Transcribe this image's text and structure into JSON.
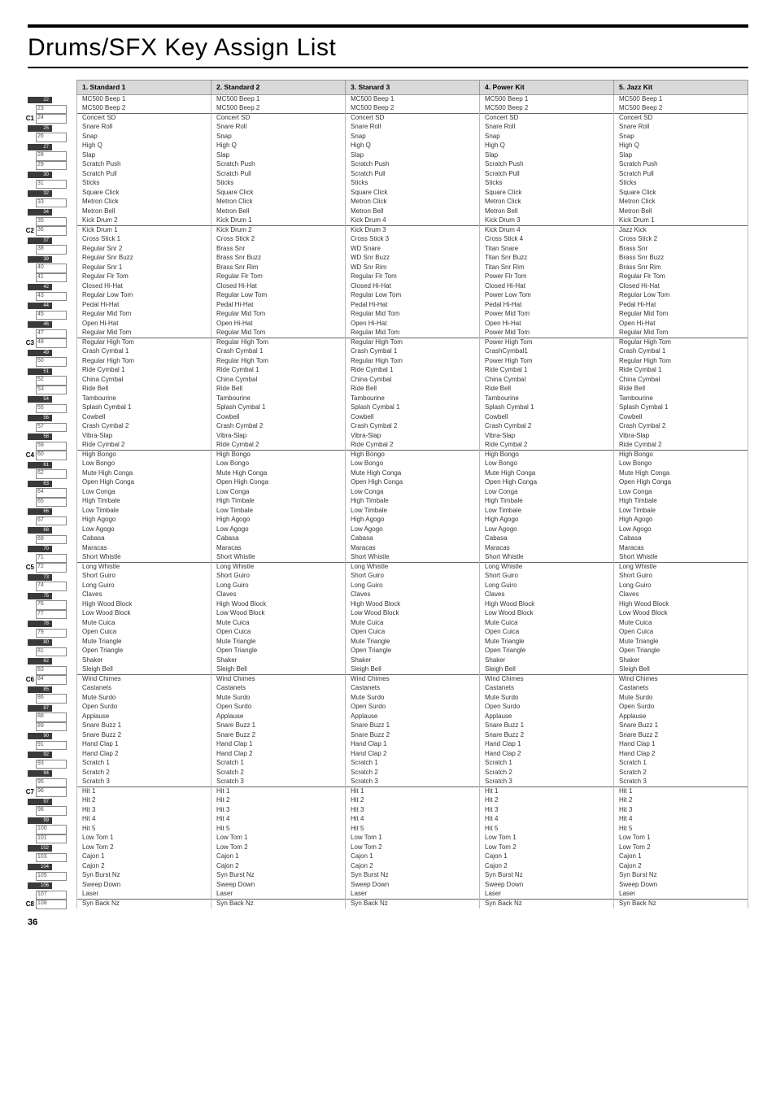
{
  "title": "Drums/SFX Key Assign List",
  "page_number": "36",
  "headers": [
    "1. Standard 1",
    "2. Standard 2",
    "3. Stanard 3",
    "4. Power Kit",
    "5. Jazz Kit"
  ],
  "keys": [
    {
      "type": "black",
      "n": 22,
      "oct": ""
    },
    {
      "type": "white",
      "n": 23,
      "oct": ""
    },
    {
      "type": "white",
      "n": 24,
      "oct": "C1"
    },
    {
      "type": "black",
      "n": 25
    },
    {
      "type": "white",
      "n": 26
    },
    {
      "type": "black",
      "n": 27
    },
    {
      "type": "white",
      "n": 28
    },
    {
      "type": "white",
      "n": 29
    },
    {
      "type": "black",
      "n": 30
    },
    {
      "type": "white",
      "n": 31
    },
    {
      "type": "black",
      "n": 32
    },
    {
      "type": "white",
      "n": 33
    },
    {
      "type": "black",
      "n": 34
    },
    {
      "type": "white",
      "n": 35
    },
    {
      "type": "white",
      "n": 36,
      "oct": "C2"
    },
    {
      "type": "black",
      "n": 37
    },
    {
      "type": "white",
      "n": 38
    },
    {
      "type": "black",
      "n": 39
    },
    {
      "type": "white",
      "n": 40
    },
    {
      "type": "white",
      "n": 41
    },
    {
      "type": "black",
      "n": 42
    },
    {
      "type": "white",
      "n": 43
    },
    {
      "type": "black",
      "n": 44
    },
    {
      "type": "white",
      "n": 45
    },
    {
      "type": "black",
      "n": 46
    },
    {
      "type": "white",
      "n": 47
    },
    {
      "type": "white",
      "n": 48,
      "oct": "C3"
    },
    {
      "type": "black",
      "n": 49
    },
    {
      "type": "white",
      "n": 50
    },
    {
      "type": "black",
      "n": 51
    },
    {
      "type": "white",
      "n": 52
    },
    {
      "type": "white",
      "n": 53
    },
    {
      "type": "black",
      "n": 54
    },
    {
      "type": "white",
      "n": 55
    },
    {
      "type": "black",
      "n": 56
    },
    {
      "type": "white",
      "n": 57
    },
    {
      "type": "black",
      "n": 58
    },
    {
      "type": "white",
      "n": 59
    },
    {
      "type": "white",
      "n": 60,
      "oct": "C4"
    },
    {
      "type": "black",
      "n": 61
    },
    {
      "type": "white",
      "n": 62
    },
    {
      "type": "black",
      "n": 63
    },
    {
      "type": "white",
      "n": 64
    },
    {
      "type": "white",
      "n": 65
    },
    {
      "type": "black",
      "n": 66
    },
    {
      "type": "white",
      "n": 67
    },
    {
      "type": "black",
      "n": 68
    },
    {
      "type": "white",
      "n": 69
    },
    {
      "type": "black",
      "n": 70
    },
    {
      "type": "white",
      "n": 71
    },
    {
      "type": "white",
      "n": 72,
      "oct": "C5"
    },
    {
      "type": "black",
      "n": 73
    },
    {
      "type": "white",
      "n": 74
    },
    {
      "type": "black",
      "n": 75
    },
    {
      "type": "white",
      "n": 76
    },
    {
      "type": "white",
      "n": 77
    },
    {
      "type": "black",
      "n": 78
    },
    {
      "type": "white",
      "n": 79
    },
    {
      "type": "black",
      "n": 80
    },
    {
      "type": "white",
      "n": 81
    },
    {
      "type": "black",
      "n": 82
    },
    {
      "type": "white",
      "n": 83
    },
    {
      "type": "white",
      "n": 84,
      "oct": "C6"
    },
    {
      "type": "black",
      "n": 85
    },
    {
      "type": "white",
      "n": 86
    },
    {
      "type": "black",
      "n": 87
    },
    {
      "type": "white",
      "n": 88
    },
    {
      "type": "white",
      "n": 89
    },
    {
      "type": "black",
      "n": 90
    },
    {
      "type": "white",
      "n": 91
    },
    {
      "type": "black",
      "n": 92
    },
    {
      "type": "white",
      "n": 93
    },
    {
      "type": "black",
      "n": 94
    },
    {
      "type": "white",
      "n": 95
    },
    {
      "type": "white",
      "n": 96,
      "oct": "C7"
    },
    {
      "type": "black",
      "n": 97
    },
    {
      "type": "white",
      "n": 98
    },
    {
      "type": "black",
      "n": 99
    },
    {
      "type": "white",
      "n": 100
    },
    {
      "type": "white",
      "n": 101
    },
    {
      "type": "black",
      "n": 102
    },
    {
      "type": "white",
      "n": 103
    },
    {
      "type": "black",
      "n": 104
    },
    {
      "type": "white",
      "n": 105
    },
    {
      "type": "black",
      "n": 106
    },
    {
      "type": "white",
      "n": 107
    },
    {
      "type": "white",
      "n": 108,
      "oct": "C8"
    }
  ],
  "rows": [
    {
      "sep": true,
      "c": [
        "MC500 Beep 1",
        "MC500 Beep 1",
        "MC500 Beep 1",
        "MC500 Beep 1",
        "MC500 Beep 1"
      ]
    },
    {
      "c": [
        "MC500 Beep 2",
        "MC500 Beep 2",
        "MC500 Beep 2",
        "MC500 Beep 2",
        "MC500 Beep 2"
      ]
    },
    {
      "sep": true,
      "c": [
        "Concert SD",
        "Concert SD",
        "Concert SD",
        "Concert SD",
        "Concert SD"
      ]
    },
    {
      "c": [
        "Snare Roll",
        "Snare Roll",
        "Snare Roll",
        "Snare Roll",
        "Snare Roll"
      ]
    },
    {
      "c": [
        "Snap",
        "Snap",
        "Snap",
        "Snap",
        "Snap"
      ]
    },
    {
      "c": [
        "High Q",
        "High Q",
        "High Q",
        "High Q",
        "High Q"
      ]
    },
    {
      "c": [
        "Slap",
        "Slap",
        "Slap",
        "Slap",
        "Slap"
      ]
    },
    {
      "c": [
        "Scratch Push",
        "Scratch Push",
        "Scratch Push",
        "Scratch Push",
        "Scratch Push"
      ]
    },
    {
      "c": [
        "Scratch Pull",
        "Scratch Pull",
        "Scratch Pull",
        "Scratch Pull",
        "Scratch Pull"
      ]
    },
    {
      "c": [
        "Sticks",
        "Sticks",
        "Sticks",
        "Sticks",
        "Sticks"
      ]
    },
    {
      "c": [
        "Square Click",
        "Square Click",
        "Square Click",
        "Square Click",
        "Square Click"
      ]
    },
    {
      "c": [
        "Metron Click",
        "Metron Click",
        "Metron Click",
        "Metron Click",
        "Metron Click"
      ]
    },
    {
      "c": [
        "Metron Bell",
        "Metron Bell",
        "Metron Bell",
        "Metron Bell",
        "Metron Bell"
      ]
    },
    {
      "c": [
        "Kick Drum 2",
        "Kick Drum 1",
        "Kick Drum 4",
        "Kick Drum 3",
        "Kick Drum 1"
      ]
    },
    {
      "sep": true,
      "c": [
        "Kick Drum 1",
        "Kick Drum 2",
        "Kick Drum 3",
        "Kick Drum 4",
        "Jazz Kick"
      ]
    },
    {
      "c": [
        "Cross Stick 1",
        "Cross Stick 2",
        "Cross Stick 3",
        "Cross Stick 4",
        "Cross Stick 2"
      ]
    },
    {
      "c": [
        "Regular Snr 2",
        "Brass Snr",
        "WD Snare",
        "Titan Snare",
        "Brass Snr"
      ]
    },
    {
      "c": [
        "Regular Snr Buzz",
        "Brass Snr Buzz",
        "WD Snr Buzz",
        "Titan Snr Buzz",
        "Brass Snr Buzz"
      ]
    },
    {
      "c": [
        "Regular Snr 1",
        "Brass Snr Rim",
        "WD Snr Rim",
        "Titan  Snr Rim",
        "Brass Snr Rim"
      ]
    },
    {
      "c": [
        "Regular Flr Tom",
        "Regular Flr Tom",
        "Regular Flr Tom",
        "Power Flr Tom",
        "Regular Flr Tom"
      ]
    },
    {
      "c": [
        "Closed Hi-Hat",
        "Closed Hi-Hat",
        "Closed Hi-Hat",
        "Closed Hi-Hat",
        "Closed Hi-Hat"
      ]
    },
    {
      "c": [
        "Regular Low Tom",
        "Regular Low Tom",
        "Regular Low Tom",
        "Power Low Tom",
        "Regular Low Tom"
      ]
    },
    {
      "c": [
        "Pedal Hi-Hat",
        "Pedal Hi-Hat",
        "Pedal Hi-Hat",
        "Pedal Hi-Hat",
        "Pedal Hi-Hat"
      ]
    },
    {
      "c": [
        "Regular Mid Tom",
        "Regular Mid Tom",
        "Regular Mid Tom",
        "Power Mid Tom",
        "Regular Mid Tom"
      ]
    },
    {
      "c": [
        "Open Hi-Hat",
        "Open Hi-Hat",
        "Open Hi-Hat",
        "Open Hi-Hat",
        "Open Hi-Hat"
      ]
    },
    {
      "c": [
        "Regular Mid Tom",
        "Regular Mid Tom",
        "Regular Mid Tom",
        "Power Mid Tom",
        "Regular Mid Tom"
      ]
    },
    {
      "sep": true,
      "c": [
        "Regular High Tom",
        "Regular High Tom",
        "Regular High Tom",
        "Power High Tom",
        "Regular High Tom"
      ]
    },
    {
      "c": [
        "Crash Cymbal 1",
        "Crash Cymbal 1",
        "Crash Cymbal 1",
        "CrashCymbal1",
        "Crash Cymbal 1"
      ]
    },
    {
      "c": [
        "Regular High Tom",
        "Regular High Tom",
        "Regular High Tom",
        "Power High Tom",
        "Regular High Tom"
      ]
    },
    {
      "c": [
        "Ride Cymbal 1",
        "Ride Cymbal 1",
        "Ride Cymbal 1",
        "Ride Cymbal 1",
        "Ride Cymbal 1"
      ]
    },
    {
      "c": [
        "China Cymbal",
        "China Cymbal",
        "China Cymbal",
        "China Cymbal",
        "China Cymbal"
      ]
    },
    {
      "c": [
        "Ride Bell",
        "Ride Bell",
        "Ride Bell",
        "Ride Bell",
        "Ride Bell"
      ]
    },
    {
      "c": [
        "Tambourine",
        "Tambourine",
        "Tambourine",
        "Tambourine",
        "Tambourine"
      ]
    },
    {
      "c": [
        "Splash Cymbal 1",
        "Splash Cymbal 1",
        "Splash Cymbal 1",
        "Splash Cymbal 1",
        "Splash Cymbal 1"
      ]
    },
    {
      "c": [
        "Cowbell",
        "Cowbell",
        "Cowbell",
        "Cowbell",
        "Cowbell"
      ]
    },
    {
      "c": [
        "Crash Cymbal 2",
        "Crash Cymbal 2",
        "Crash Cymbal 2",
        "Crash Cymbal 2",
        "Crash Cymbal 2"
      ]
    },
    {
      "c": [
        "Vibra-Slap",
        "Vibra-Slap",
        "Vibra-Slap",
        "Vibra-Slap",
        "Vibra-Slap"
      ]
    },
    {
      "c": [
        "Ride Cymbal 2",
        "Ride Cymbal 2",
        "Ride Cymbal 2",
        "Ride Cymbal 2",
        "Ride Cymbal 2"
      ]
    },
    {
      "sep": true,
      "c": [
        "High Bongo",
        "High Bongo",
        "High Bongo",
        "High Bongo",
        "High Bongo"
      ]
    },
    {
      "c": [
        "Low Bongo",
        "Low Bongo",
        "Low Bongo",
        "Low Bongo",
        "Low Bongo"
      ]
    },
    {
      "c": [
        "Mute High Conga",
        "Mute High Conga",
        "Mute High Conga",
        "Mute High Conga",
        "Mute High Conga"
      ]
    },
    {
      "c": [
        "Open High Conga",
        "Open High Conga",
        "Open High Conga",
        "Open High Conga",
        "Open High Conga"
      ]
    },
    {
      "c": [
        "Low Conga",
        "Low Conga",
        "Low Conga",
        "Low Conga",
        "Low Conga"
      ]
    },
    {
      "c": [
        "High Timbale",
        "High Timbale",
        "High Timbale",
        "High Timbale",
        "High Timbale"
      ]
    },
    {
      "c": [
        "Low Timbale",
        "Low Timbale",
        "Low Timbale",
        "Low Timbale",
        "Low Timbale"
      ]
    },
    {
      "c": [
        "High Agogo",
        "High Agogo",
        "High Agogo",
        "High Agogo",
        "High Agogo"
      ]
    },
    {
      "c": [
        "Low Agogo",
        "Low Agogo",
        "Low Agogo",
        "Low Agogo",
        "Low Agogo"
      ]
    },
    {
      "c": [
        "Cabasa",
        "Cabasa",
        "Cabasa",
        "Cabasa",
        "Cabasa"
      ]
    },
    {
      "c": [
        "Maracas",
        "Maracas",
        "Maracas",
        "Maracas",
        "Maracas"
      ]
    },
    {
      "c": [
        "Short Whistle",
        "Short Whistle",
        "Short Whistle",
        "Short Whistle",
        "Short Whistle"
      ]
    },
    {
      "sep": true,
      "c": [
        "Long  Whistle",
        "Long  Whistle",
        "Long  Whistle",
        "Long  Whistle",
        "Long  Whistle"
      ]
    },
    {
      "c": [
        "Short Guiro",
        "Short Guiro",
        "Short Guiro",
        "Short Guiro",
        "Short Guiro"
      ]
    },
    {
      "c": [
        "Long Guiro",
        "Long Guiro",
        "Long Guiro",
        "Long Guiro",
        "Long Guiro"
      ]
    },
    {
      "c": [
        "Claves",
        "Claves",
        "Claves",
        "Claves",
        "Claves"
      ]
    },
    {
      "c": [
        "High  Wood Block",
        "High  Wood Block",
        "High  Wood Block",
        "High  Wood Block",
        "High  Wood Block"
      ]
    },
    {
      "c": [
        "Low Wood Block",
        "Low Wood Block",
        "Low Wood Block",
        "Low Wood Block",
        "Low Wood Block"
      ]
    },
    {
      "c": [
        "Mute Cuica",
        "Mute Cuica",
        "Mute Cuica",
        "Mute Cuica",
        "Mute Cuica"
      ]
    },
    {
      "c": [
        "Open Cuica",
        "Open Cuica",
        "Open Cuica",
        "Open Cuica",
        "Open Cuica"
      ]
    },
    {
      "c": [
        "Mute Triangle",
        "Mute Triangle",
        "Mute Triangle",
        "Mute Triangle",
        "Mute Triangle"
      ]
    },
    {
      "c": [
        "Open Triangle",
        "Open Triangle",
        "Open Triangle",
        "Open Triangle",
        "Open Triangle"
      ]
    },
    {
      "c": [
        "Shaker",
        "Shaker",
        "Shaker",
        "Shaker",
        "Shaker"
      ]
    },
    {
      "c": [
        "Sleigh Bell",
        "Sleigh Bell",
        "Sleigh Bell",
        "Sleigh Bell",
        "Sleigh Bell"
      ]
    },
    {
      "sep": true,
      "c": [
        "Wind Chimes",
        "Wind Chimes",
        "Wind Chimes",
        "Wind Chimes",
        "Wind Chimes"
      ]
    },
    {
      "c": [
        "Castanets",
        "Castanets",
        "Castanets",
        "Castanets",
        "Castanets"
      ]
    },
    {
      "c": [
        "Mute Surdo",
        "Mute Surdo",
        "Mute Surdo",
        "Mute Surdo",
        "Mute Surdo"
      ]
    },
    {
      "c": [
        "Open Surdo",
        "Open Surdo",
        "Open Surdo",
        "Open Surdo",
        "Open Surdo"
      ]
    },
    {
      "c": [
        "Applause",
        "Applause",
        "Applause",
        "Applause",
        "Applause"
      ]
    },
    {
      "c": [
        "Snare Buzz 1",
        "Snare Buzz 1",
        "Snare Buzz 1",
        "Snare Buzz 1",
        "Snare Buzz 1"
      ]
    },
    {
      "c": [
        "Snare Buzz 2",
        "Snare Buzz 2",
        "Snare Buzz 2",
        "Snare Buzz 2",
        "Snare Buzz 2"
      ]
    },
    {
      "c": [
        "Hand Clap 1",
        "Hand Clap 1",
        "Hand Clap 1",
        "Hand Clap 1",
        "Hand Clap 1"
      ]
    },
    {
      "c": [
        "Hand Clap 2",
        "Hand Clap 2",
        "Hand Clap 2",
        "Hand Clap 2",
        "Hand Clap 2"
      ]
    },
    {
      "c": [
        "Scratch 1",
        "Scratch 1",
        "Scratch 1",
        "Scratch 1",
        "Scratch 1"
      ]
    },
    {
      "c": [
        "Scratch 2",
        "Scratch 2",
        "Scratch 2",
        "Scratch 2",
        "Scratch 2"
      ]
    },
    {
      "c": [
        "Scratch 3",
        "Scratch 3",
        "Scratch 3",
        "Scratch 3",
        "Scratch 3"
      ]
    },
    {
      "sep": true,
      "c": [
        "Hit 1",
        "Hit 1",
        "Hit 1",
        "Hit 1",
        "Hit 1"
      ]
    },
    {
      "c": [
        "Hit 2",
        "Hit 2",
        "Hit 2",
        "Hit 2",
        "Hit 2"
      ]
    },
    {
      "c": [
        "Hit 3",
        "Hit 3",
        "Hit 3",
        "Hit 3",
        "Hit 3"
      ]
    },
    {
      "c": [
        "Hit 4",
        "Hit 4",
        "Hit 4",
        "Hit 4",
        "Hit 4"
      ]
    },
    {
      "c": [
        "Hit 5",
        "Hit 5",
        "Hit 5",
        "Hit 5",
        "Hit 5"
      ]
    },
    {
      "c": [
        "Low Tom 1",
        "Low Tom 1",
        "Low Tom 1",
        "Low Tom 1",
        "Low Tom 1"
      ]
    },
    {
      "c": [
        "Low Tom 2",
        "Low Tom 2",
        "Low Tom 2",
        "Low Tom 2",
        "Low Tom 2"
      ]
    },
    {
      "c": [
        "Cajon 1",
        "Cajon 1",
        "Cajon 1",
        "Cajon 1",
        "Cajon 1"
      ]
    },
    {
      "c": [
        "Cajon 2",
        "Cajon 2",
        "Cajon 2",
        "Cajon 2",
        "Cajon 2"
      ]
    },
    {
      "c": [
        "Syn Burst Nz",
        "Syn Burst Nz",
        "Syn Burst Nz",
        "Syn Burst Nz",
        "Syn Burst Nz"
      ]
    },
    {
      "c": [
        "Sweep Down",
        "Sweep Down",
        "Sweep Down",
        "Sweep Down",
        "Sweep Down"
      ]
    },
    {
      "c": [
        "Laser",
        "Laser",
        "Laser",
        "Laser",
        "Laser"
      ]
    },
    {
      "sep": true,
      "c": [
        "Syn Back Nz",
        "Syn Back Nz",
        "Syn Back Nz",
        "Syn Back Nz",
        "Syn Back Nz"
      ]
    }
  ]
}
